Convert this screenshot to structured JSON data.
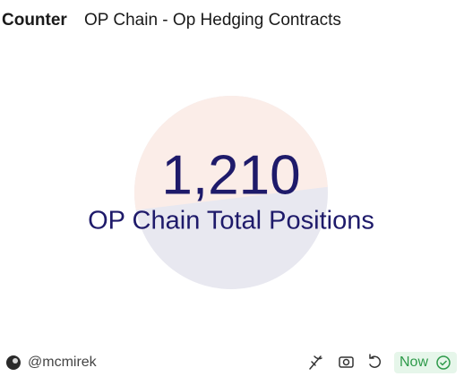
{
  "header": {
    "type": "Counter",
    "title": "OP Chain - Op Hedging Contracts"
  },
  "counter": {
    "value": "1,210",
    "label": "OP Chain Total Positions"
  },
  "footer": {
    "author": "@mcmirek",
    "status": "Now"
  }
}
